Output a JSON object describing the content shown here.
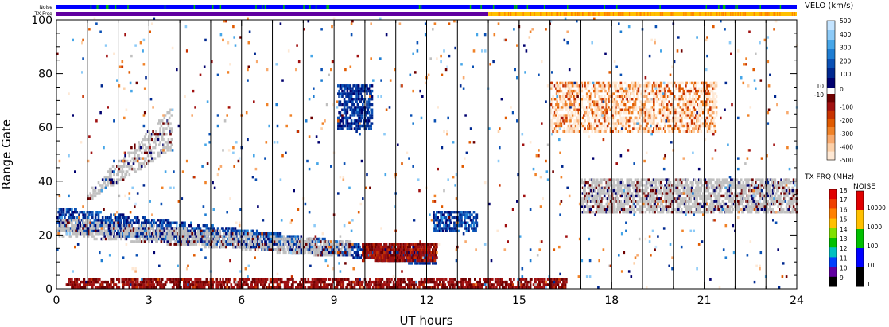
{
  "top_bars": {
    "noise_label": "Noise",
    "txfreq_label": "TX Freq"
  },
  "chart_data": {
    "type": "heatmap",
    "xlabel": "UT hours",
    "ylabel": "Range Gate",
    "xlim": [
      0,
      24
    ],
    "ylim": [
      0,
      100
    ],
    "x_ticks": [
      0,
      3,
      6,
      9,
      12,
      15,
      18,
      21,
      24
    ],
    "y_ticks": [
      0,
      20,
      40,
      60,
      80,
      100
    ],
    "hour_lines": [
      1,
      2,
      3,
      4,
      5,
      6,
      7,
      8,
      9,
      10,
      11,
      12,
      13,
      14,
      15,
      16,
      17,
      18,
      19,
      20,
      21,
      22,
      23
    ],
    "tx_freq_switch_hour": 14,
    "scatter_regions": [
      {
        "name": "near-range band",
        "x": [
          0.3,
          16.5
        ],
        "y": [
          0,
          3
        ],
        "velocity": -80,
        "density": 0.55
      },
      {
        "name": "descending echo band",
        "x": [
          0,
          12.3
        ],
        "y_start": [
          29,
          22
        ],
        "y_end": [
          12,
          9
        ],
        "velocity": 150,
        "density": 0.5
      },
      {
        "name": "low-velocity ground scatter",
        "x": [
          0,
          9.5
        ],
        "y_start": [
          25,
          20
        ],
        "y_end": [
          16,
          12
        ],
        "velocity": 0,
        "density": 0.45
      },
      {
        "name": "dense patch",
        "x": [
          9.9,
          12.3
        ],
        "y": [
          10,
          16
        ],
        "velocity": -90,
        "density": 0.7
      },
      {
        "name": "rising arc",
        "x": [
          1,
          3.7
        ],
        "y_start": [
          35,
          33
        ],
        "y_end": [
          66,
          52
        ],
        "velocity": 0,
        "density": 0.35
      },
      {
        "name": "high-range patch",
        "x": [
          9.1,
          10.2
        ],
        "y": [
          59,
          75
        ],
        "velocity": 120,
        "density": 0.55
      },
      {
        "name": "mid-range patch",
        "x": [
          12.2,
          13.6
        ],
        "y": [
          21,
          28
        ],
        "velocity": 150,
        "density": 0.5
      },
      {
        "name": "evening ground scatter",
        "x": [
          17,
          24
        ],
        "y": [
          28,
          40
        ],
        "velocity": 0,
        "density": 0.55
      },
      {
        "name": "evening dome",
        "x": [
          16,
          21.4
        ],
        "y": [
          58,
          76
        ],
        "velocity": -430,
        "density": 0.45
      },
      {
        "name": "background noise",
        "x": [
          0,
          24
        ],
        "y": [
          0,
          100
        ],
        "velocity": 0,
        "density": 0.012
      }
    ],
    "velo_legend": {
      "title": "VELO (km/s)",
      "ticks": [
        500,
        400,
        300,
        200,
        100,
        10,
        0,
        -10,
        -100,
        -200,
        -300,
        -400,
        -500
      ],
      "positive_colors": [
        "#c4e4ff",
        "#8ccaf7",
        "#46a6e8",
        "#1e7dd2",
        "#0a50b4",
        "#002890",
        "#00006e"
      ],
      "negative_colors": [
        "#6e0000",
        "#a01010",
        "#c83200",
        "#e05a00",
        "#f08228",
        "#f8aa6e",
        "#fcd0a8",
        "#fee8d4"
      ],
      "ground_scatter_color": "#c0c0c0"
    },
    "txfreq_legend": {
      "title": "TX FRQ (MHz)",
      "ticks": [
        18,
        17,
        16,
        15,
        14,
        13,
        12,
        11,
        10,
        9
      ],
      "colors": [
        "#e00000",
        "#f04000",
        "#ff8000",
        "#ffc000",
        "#80e000",
        "#00c000",
        "#00c0c0",
        "#0040ff",
        "#6000a0",
        "#000000"
      ]
    },
    "noise_legend": {
      "title": "NOISE",
      "ticks": [
        10000,
        1000,
        100,
        10,
        1
      ],
      "colors": [
        "#e00000",
        "#ffc000",
        "#00c000",
        "#0000ff",
        "#000000"
      ]
    }
  }
}
